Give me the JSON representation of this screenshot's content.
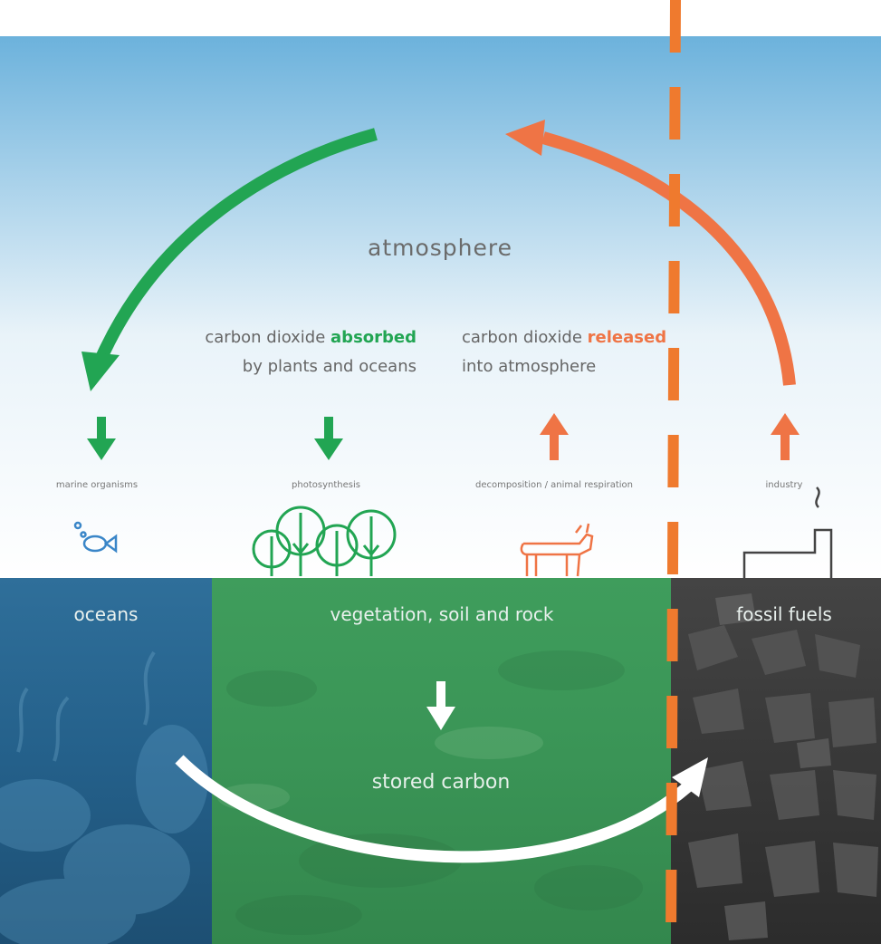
{
  "atmosphere": {
    "label": "atmosphere"
  },
  "absorbed": {
    "line1_prefix": "carbon dioxide ",
    "line1_highlight": "absorbed",
    "line2": "by plants and oceans"
  },
  "released": {
    "line1_prefix": "carbon dioxide ",
    "line1_highlight": "released",
    "line2": "into atmosphere"
  },
  "processes": {
    "marine": "marine organisms",
    "photosynthesis": "photosynthesis",
    "decomposition": "decomposition / animal respiration",
    "industry": "industry"
  },
  "reservoirs": {
    "oceans": "oceans",
    "vegetation": "vegetation, soil and rock",
    "fossil": "fossil fuels"
  },
  "stored": {
    "label": "stored carbon"
  },
  "colors": {
    "green": "#22a553",
    "orange": "#ef7445",
    "sky_top": "#6fb3dc",
    "ocean": "#2e6e96",
    "vegetation": "#3d9a5a",
    "fossil": "#3b3b3b",
    "dashed_line": "#ef7a2e"
  },
  "icons": [
    "fish-icon",
    "trees-icon",
    "cow-icon",
    "factory-icon"
  ]
}
